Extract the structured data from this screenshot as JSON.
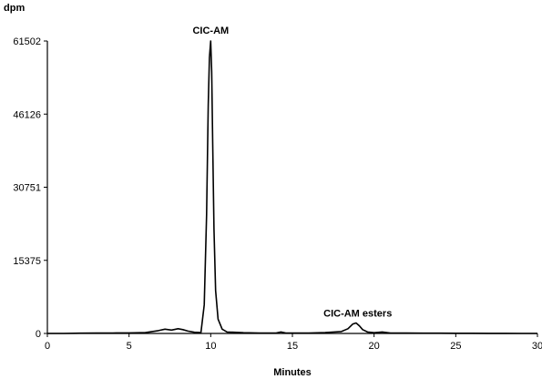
{
  "chart_data": {
    "type": "line",
    "title": "",
    "ylabel": "dpm",
    "xlabel": "Minutes",
    "xlim": [
      0,
      30
    ],
    "ylim": [
      0,
      61502
    ],
    "x_ticks": [
      "0",
      "5",
      "10",
      "15",
      "20",
      "25",
      "30"
    ],
    "y_ticks": [
      "0",
      "15375",
      "30751",
      "46126",
      "61502"
    ],
    "grid": false,
    "legend": "none",
    "annotations": [
      {
        "text": "CIC-AM",
        "x": 10.0,
        "y": 61502
      },
      {
        "text": "CIC-AM esters",
        "x": 19.0,
        "y": 2000
      }
    ],
    "series": [
      {
        "x": [
          0,
          1,
          2,
          3,
          4,
          5,
          6,
          6.8,
          7.2,
          7.6,
          8.0,
          8.3,
          8.6,
          9.0,
          9.4,
          9.6,
          9.75,
          9.85,
          9.92,
          10.0,
          10.06,
          10.12,
          10.2,
          10.3,
          10.45,
          10.7,
          11.0,
          12,
          13,
          14,
          14.3,
          14.6,
          15,
          16,
          17,
          18,
          18.4,
          18.7,
          18.9,
          19.1,
          19.3,
          19.6,
          20,
          20.5,
          21,
          22,
          23,
          24,
          25,
          26,
          27,
          28,
          29,
          30
        ],
        "y": [
          0,
          0,
          50,
          80,
          100,
          120,
          180,
          600,
          900,
          700,
          1000,
          800,
          500,
          250,
          200,
          6000,
          25000,
          48000,
          58000,
          61502,
          55000,
          40000,
          22000,
          9000,
          3000,
          900,
          300,
          150,
          100,
          100,
          300,
          100,
          80,
          100,
          200,
          400,
          1000,
          2000,
          2200,
          1600,
          800,
          300,
          150,
          300,
          100,
          80,
          60,
          50,
          40,
          30,
          20,
          10,
          0,
          0
        ]
      }
    ]
  }
}
